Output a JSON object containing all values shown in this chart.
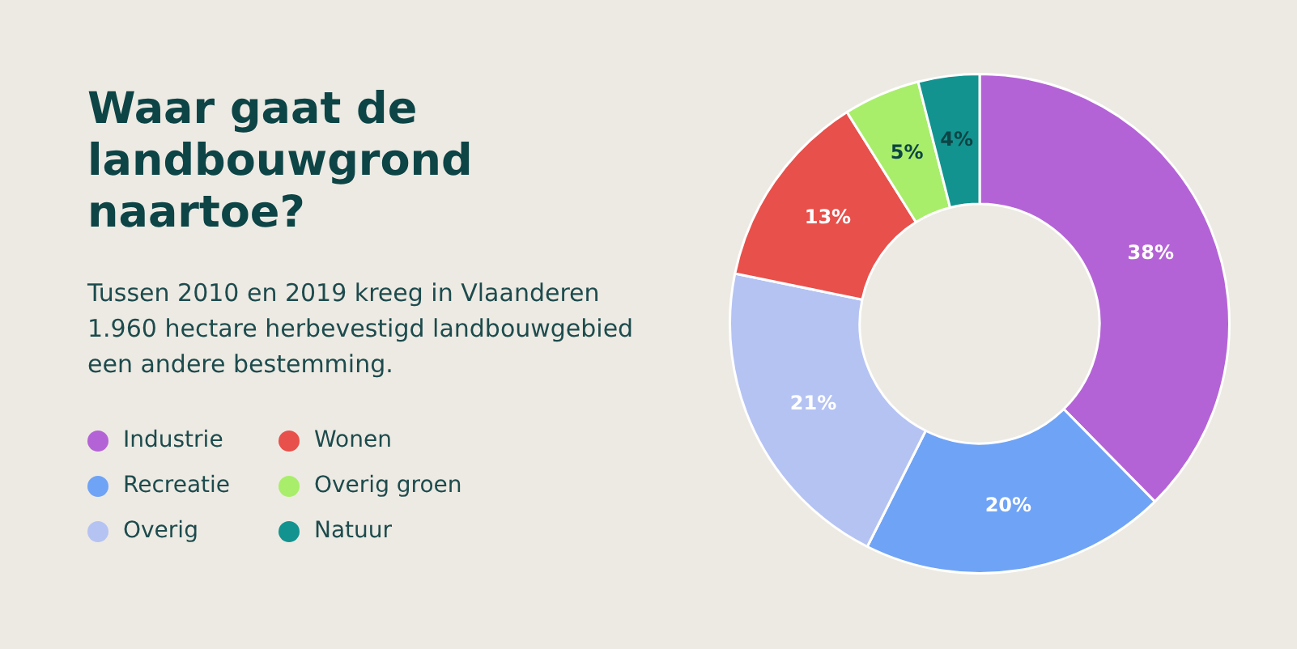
{
  "chart_data": {
    "type": "donut",
    "title": "Waar gaat de landbouwgrond naartoe?",
    "subtitle": "Tussen 2010 en 2019 kreeg in Vlaanderen 1.960 hectare herbevestigd landbouwgebied een andere bestemming.",
    "categories": [
      "Industrie",
      "Recreatie",
      "Overig",
      "Wonen",
      "Overig groen",
      "Natuur"
    ],
    "values": [
      38,
      20,
      21,
      13,
      5,
      4
    ],
    "colors": [
      "#b463d6",
      "#6fa3f5",
      "#b5c3f3",
      "#e8504b",
      "#a8ee6a",
      "#13938f"
    ],
    "value_labels": [
      "38%",
      "20%",
      "21%",
      "13%",
      "5%",
      "4%"
    ],
    "legend": "left"
  }
}
